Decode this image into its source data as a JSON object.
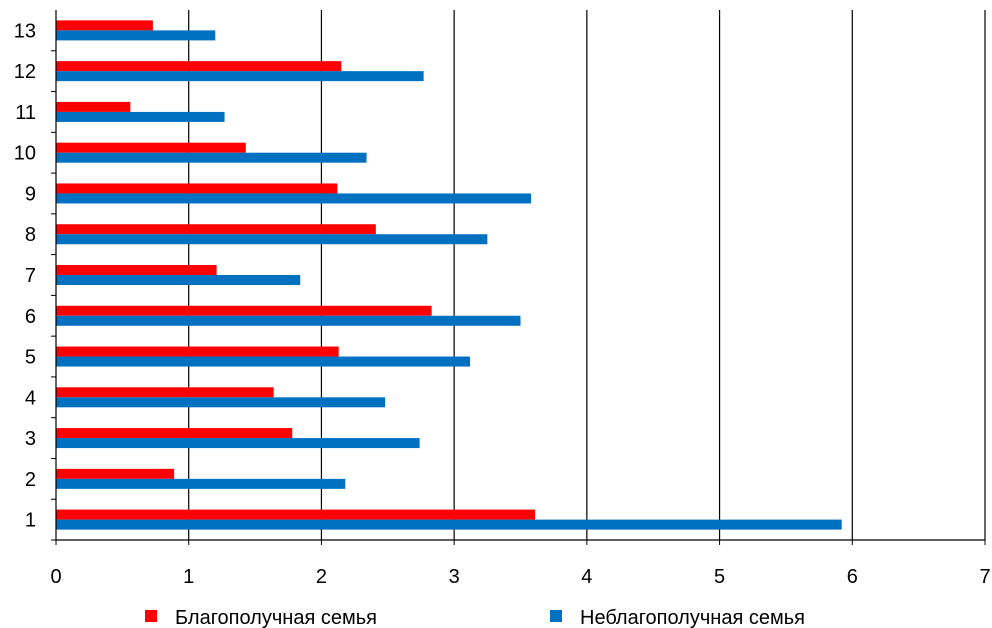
{
  "chart_data": {
    "type": "bar",
    "orientation": "horizontal",
    "categories": [
      "1",
      "2",
      "3",
      "4",
      "5",
      "6",
      "7",
      "8",
      "9",
      "10",
      "11",
      "12",
      "13"
    ],
    "series": [
      {
        "name": "Благополучная семья",
        "color": "#ff0000",
        "values": [
          3.61,
          0.89,
          1.78,
          1.64,
          2.13,
          2.83,
          1.21,
          2.41,
          2.12,
          1.43,
          0.56,
          2.15,
          0.73
        ]
      },
      {
        "name": "Неблагополучная семья",
        "color": "#0070c0",
        "values": [
          5.92,
          2.18,
          2.74,
          2.48,
          3.12,
          3.5,
          1.84,
          3.25,
          3.58,
          2.34,
          1.27,
          2.77,
          1.2
        ]
      }
    ],
    "xlim": [
      0,
      7
    ],
    "x_ticks": [
      "0",
      "1",
      "2",
      "3",
      "4",
      "5",
      "6",
      "7"
    ],
    "grid": "vertical",
    "legend": "bottom"
  }
}
